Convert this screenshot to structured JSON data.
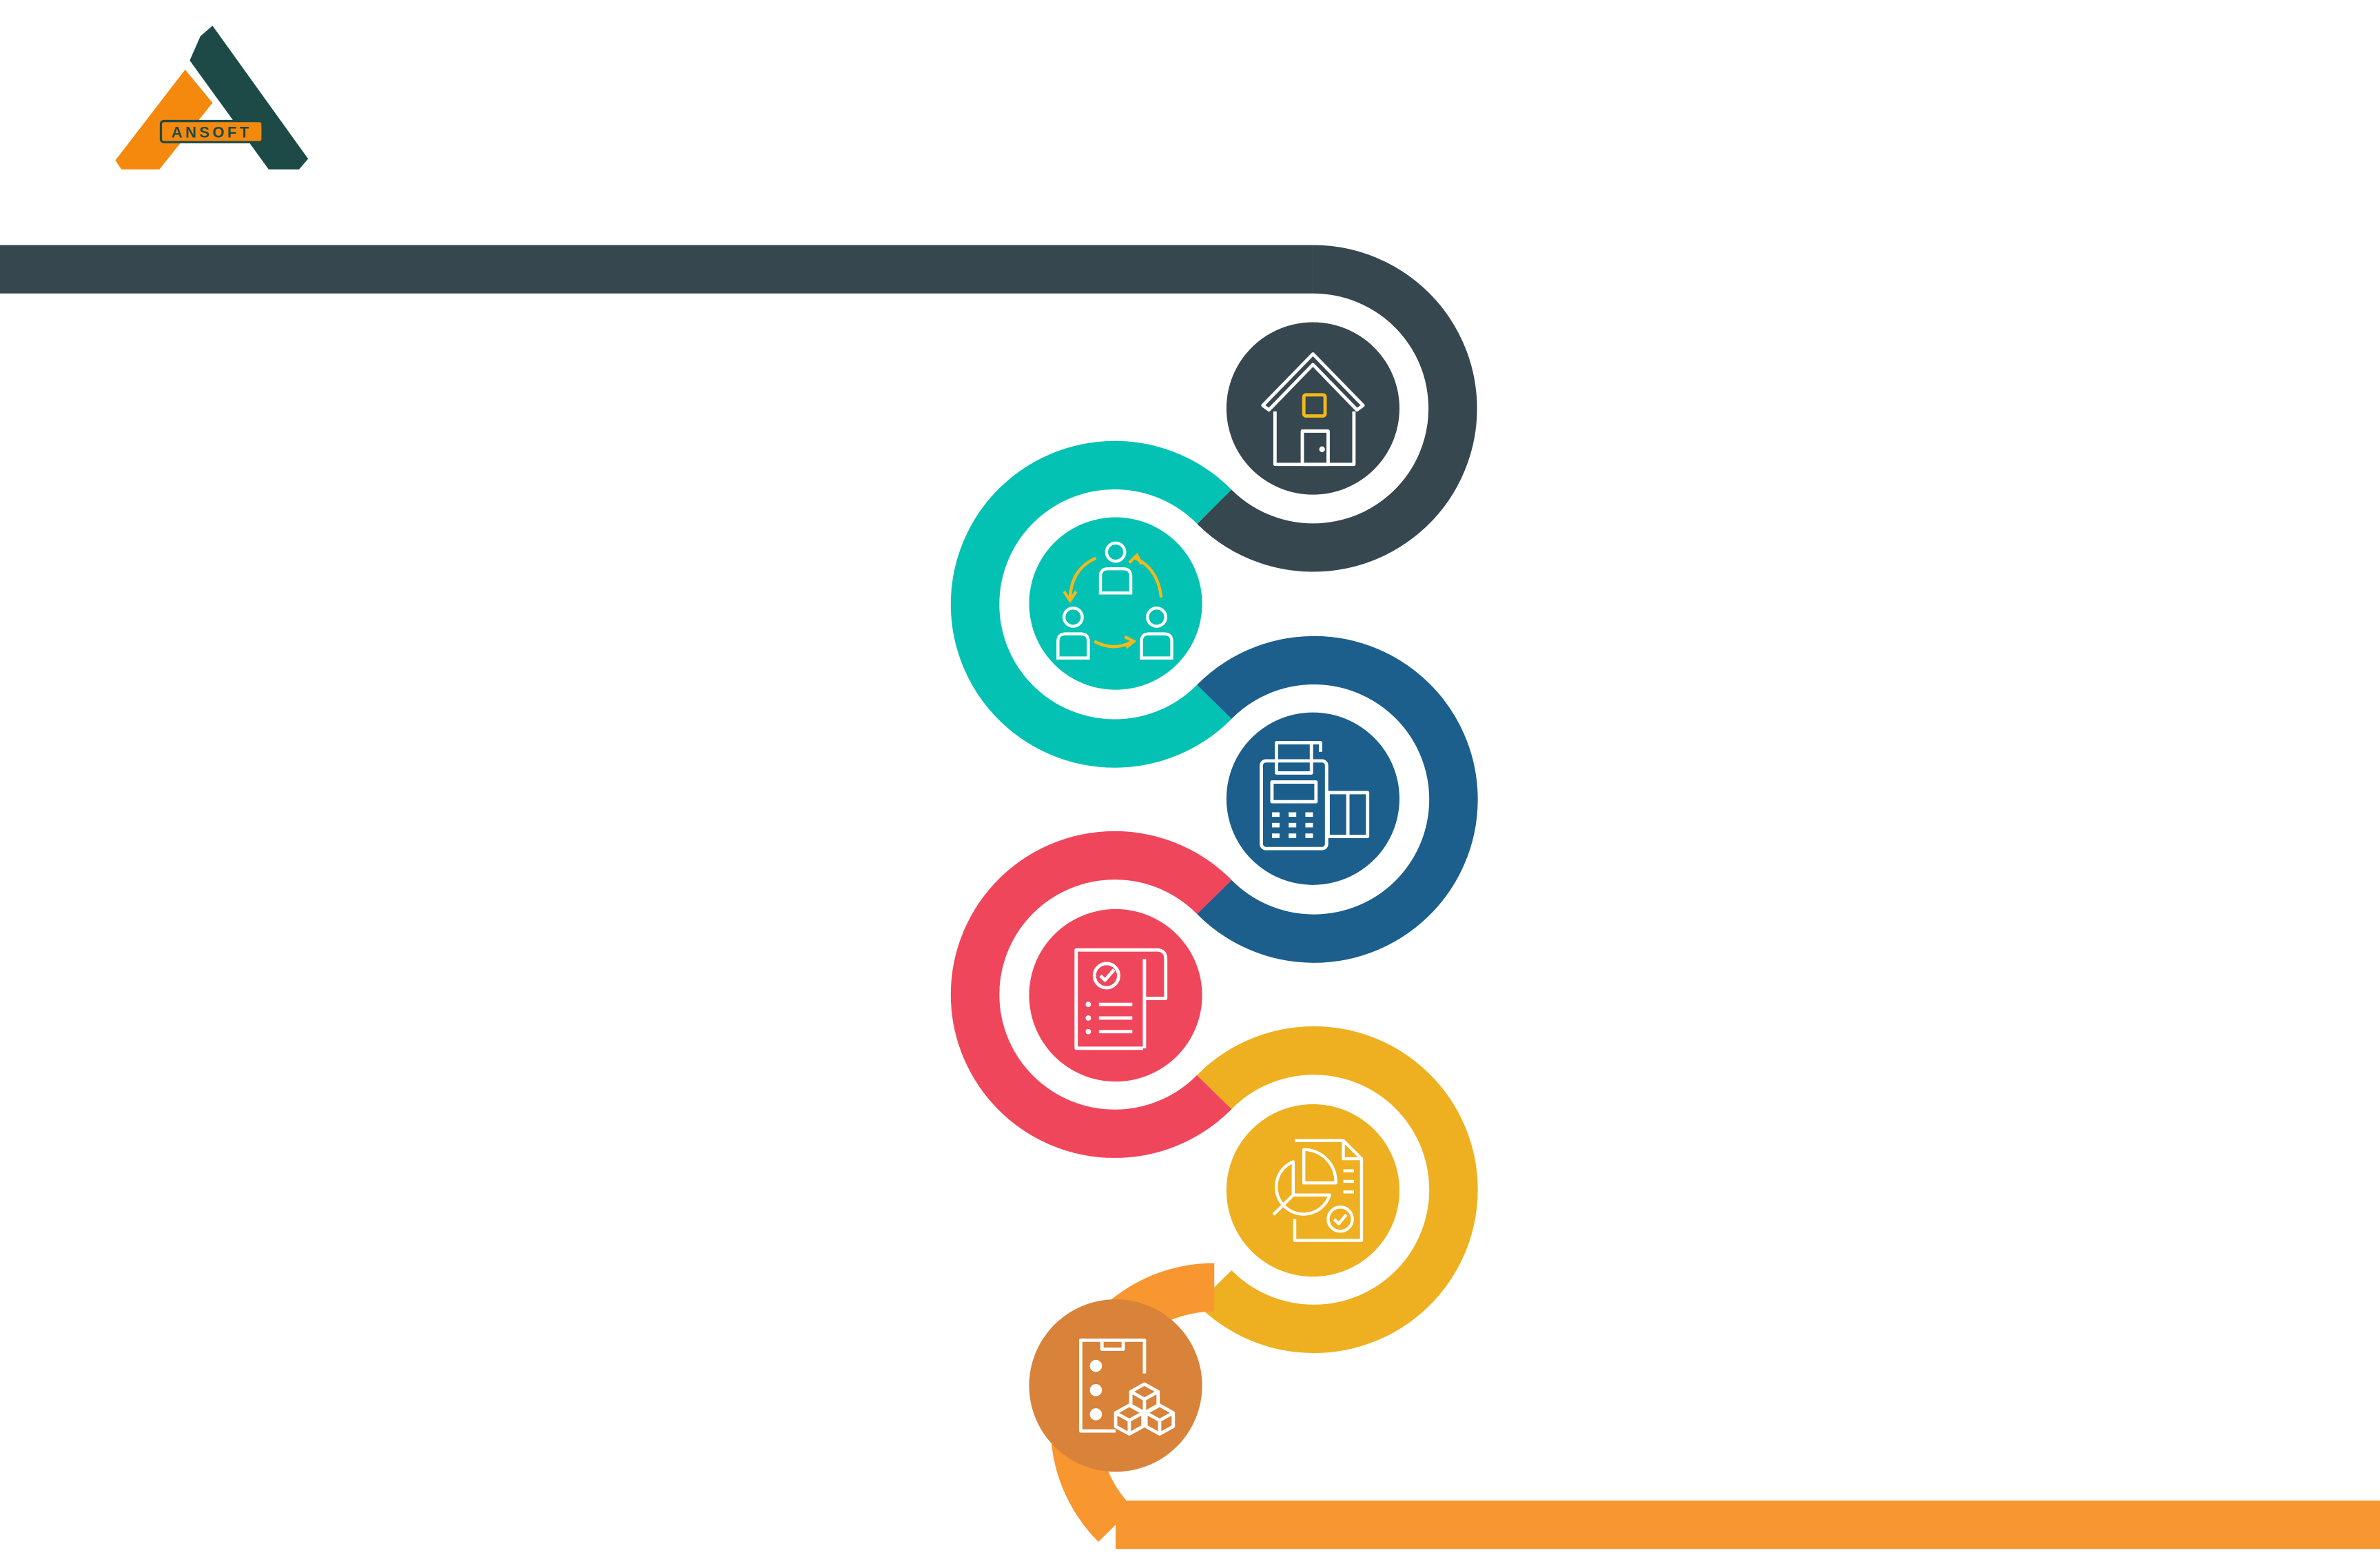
{
  "logo": {
    "text": "ANSOFT",
    "colors": {
      "orange": "#f5890e",
      "dark": "#1d4a47"
    }
  },
  "steps": [
    {
      "icon": "house-icon",
      "color": "#37474f"
    },
    {
      "icon": "team-cycle-icon",
      "color": "#03c2b4"
    },
    {
      "icon": "pos-terminal-icon",
      "color": "#1c5f8c"
    },
    {
      "icon": "checklist-document-icon",
      "color": "#ef465b"
    },
    {
      "icon": "report-chart-icon",
      "color": "#eeb020"
    },
    {
      "icon": "inventory-boxes-icon",
      "color": "#f8962f",
      "circle_color": "#d8823a"
    }
  ],
  "accent_yellow": "#f3b81a"
}
